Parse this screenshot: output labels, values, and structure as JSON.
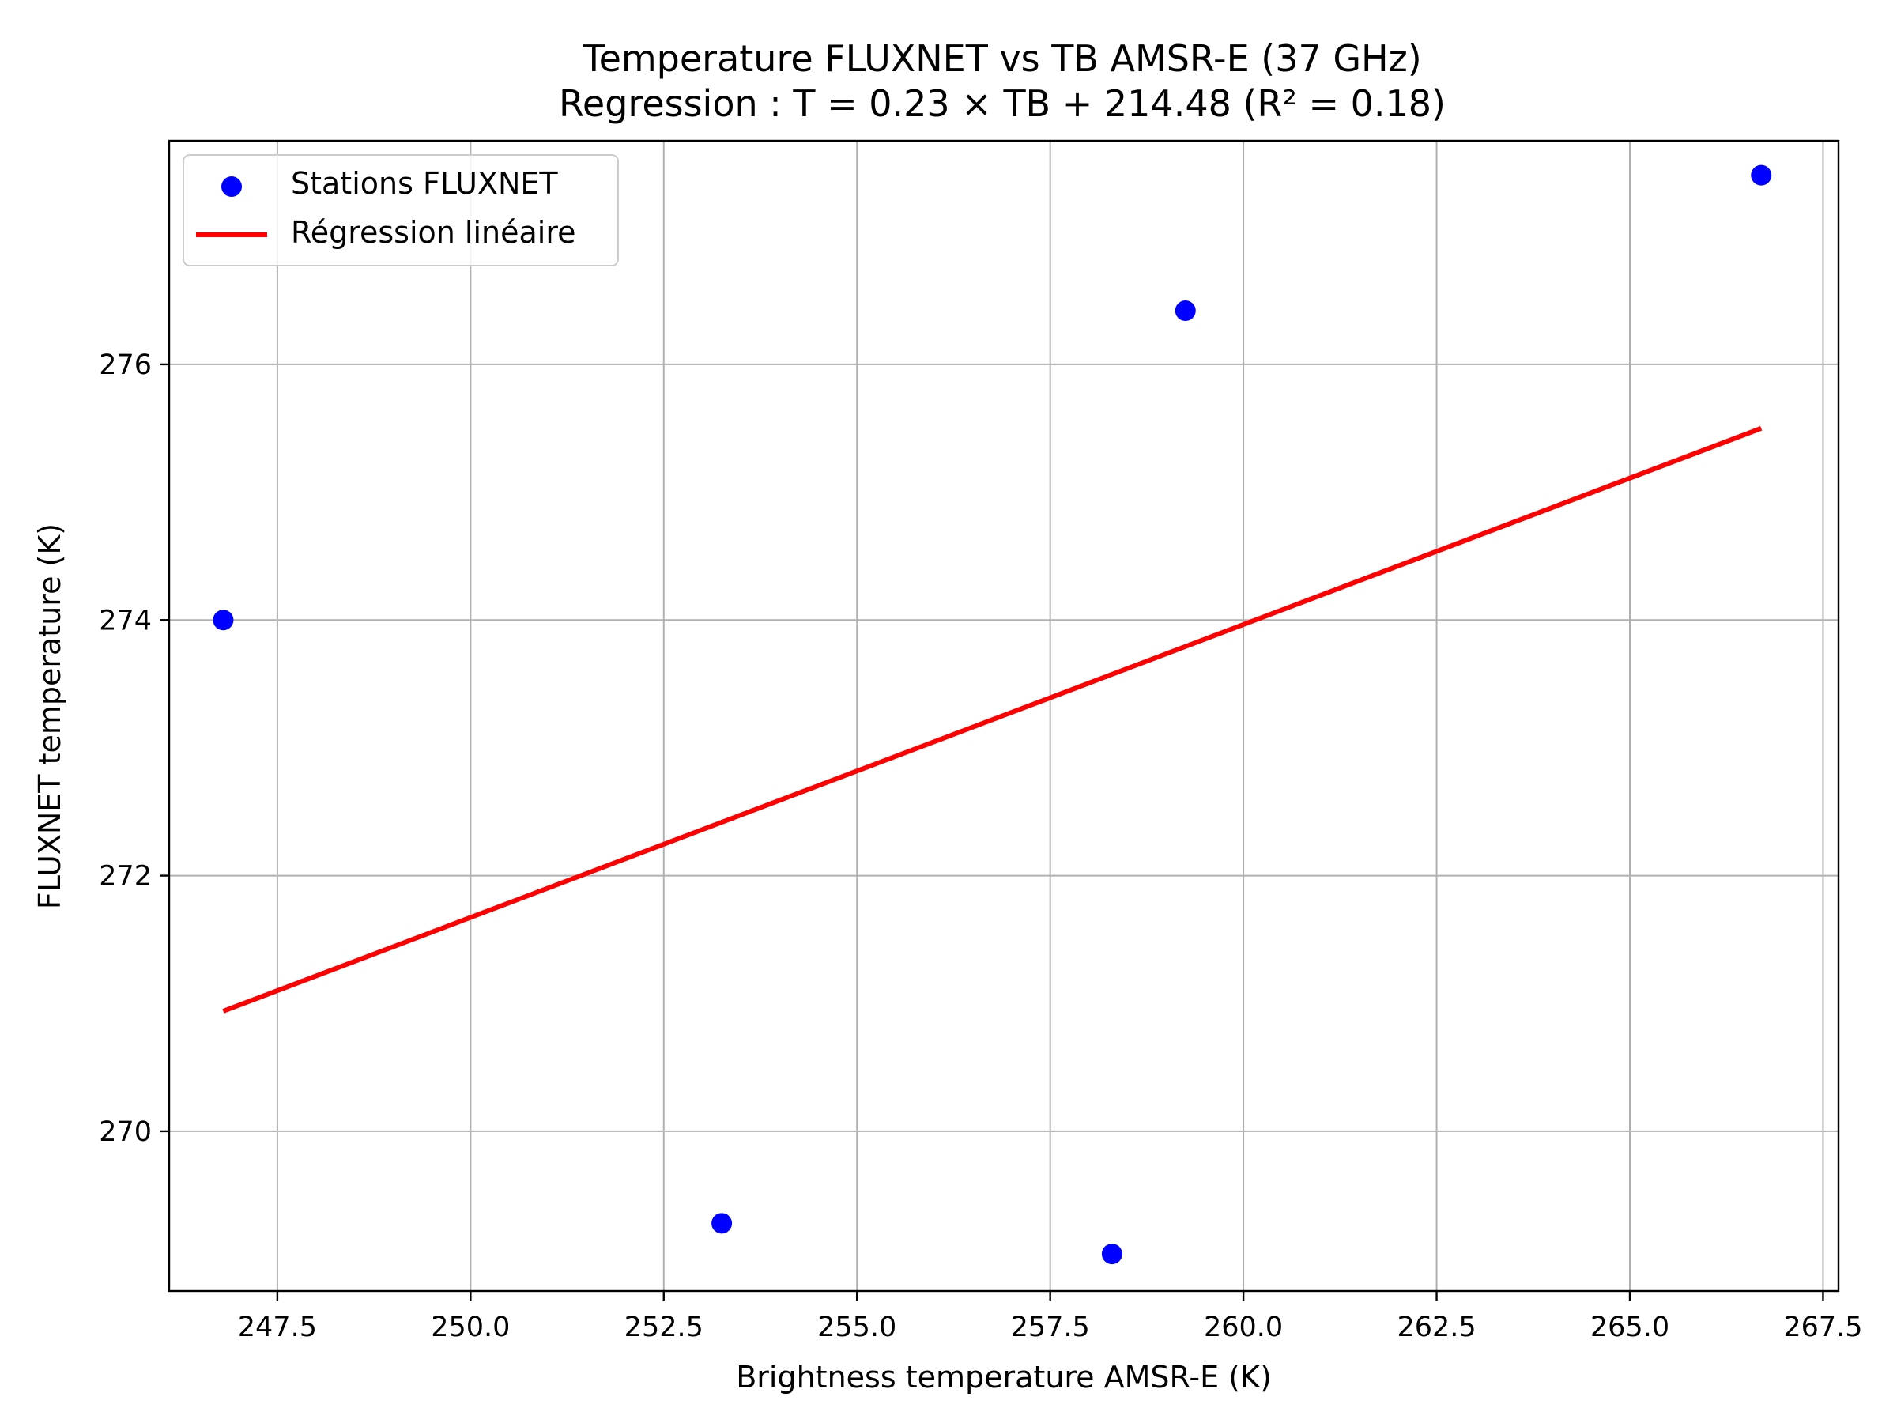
{
  "chart_data": {
    "type": "scatter",
    "title": "Temperature FLUXNET vs TB AMSR-E (37 GHz)",
    "subtitle": "Regression : T = 0.23 × TB + 214.48 (R² = 0.18)",
    "xlabel": "Brightness temperature AMSR-E (K)",
    "ylabel": "FLUXNET temperature (K)",
    "xlim": [
      246.1,
      267.7
    ],
    "ylim": [
      268.75,
      277.75
    ],
    "x_ticks": [
      247.5,
      250.0,
      252.5,
      255.0,
      257.5,
      260.0,
      262.5,
      265.0,
      267.5
    ],
    "x_tick_labels": [
      "247.5",
      "250.0",
      "252.5",
      "255.0",
      "257.5",
      "260.0",
      "262.5",
      "265.0",
      "267.5"
    ],
    "y_ticks": [
      270,
      272,
      274,
      276
    ],
    "y_tick_labels": [
      "270",
      "272",
      "274",
      "276"
    ],
    "grid": true,
    "legend_position": "top-left",
    "series": [
      {
        "name": "Stations FLUXNET",
        "kind": "scatter",
        "color": "#0000ff",
        "points": [
          {
            "x": 246.8,
            "y": 274.0
          },
          {
            "x": 253.25,
            "y": 269.28
          },
          {
            "x": 258.3,
            "y": 269.04
          },
          {
            "x": 259.25,
            "y": 276.42
          },
          {
            "x": 266.7,
            "y": 277.48
          }
        ]
      },
      {
        "name": "Régression linéaire",
        "kind": "line",
        "color": "#ff0000",
        "points": [
          {
            "x": 246.8,
            "y": 270.94
          },
          {
            "x": 266.7,
            "y": 275.5
          }
        ]
      }
    ]
  }
}
